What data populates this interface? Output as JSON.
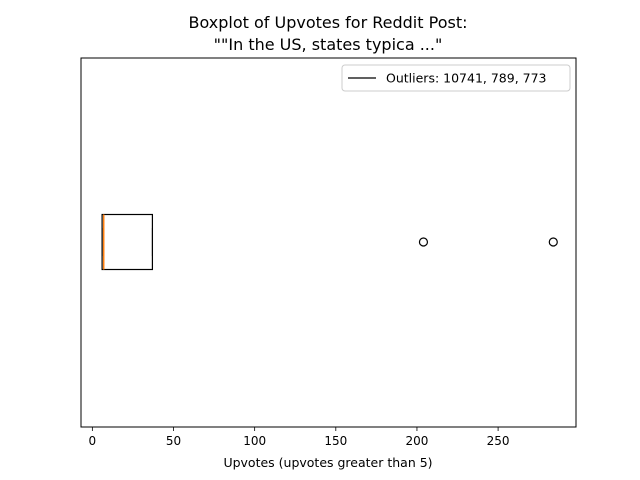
{
  "chart_data": {
    "type": "boxplot",
    "title_lines": [
      "Boxplot of Upvotes for Reddit Post:",
      "\"\"In the US, states typica ...\""
    ],
    "xlabel": "Upvotes (upvotes greater than 5)",
    "ylabel": "",
    "xlim": [
      -7,
      298
    ],
    "xticks": [
      0,
      50,
      100,
      150,
      200,
      250
    ],
    "box": {
      "whisker_low": 6,
      "q1": 6,
      "median": 7,
      "q3": 37,
      "whisker_high": 37
    },
    "fliers": [
      204,
      284
    ],
    "legend": {
      "label": "Outliers: 10741, 789, 773",
      "position": "top-right"
    },
    "grid": false,
    "colors": {
      "median": "#ff7f0e",
      "box": "#000000",
      "flier": "#000000"
    }
  }
}
